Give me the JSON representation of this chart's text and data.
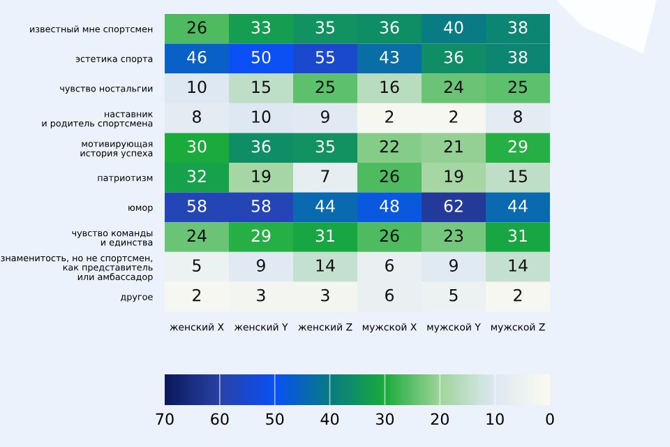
{
  "chart_data": {
    "type": "heatmap",
    "categories": [
      "женский X",
      "женский Y",
      "женский Z",
      "мужской X",
      "мужской Y",
      "мужской Z"
    ],
    "y_categories": [
      "известный мне спортсмен",
      "эстетика спорта",
      "чувство ностальгии",
      "наставник\nи родитель спортсмена",
      "мотивирующая\nистория успеха",
      "патриотизм",
      "юмор",
      "чувство команды\nи единства",
      "знаменитость, но не спортсмен,\nкак представитель\nили амбассадор",
      "другое"
    ],
    "cells": [
      [
        26,
        33,
        35,
        36,
        40,
        38
      ],
      [
        46,
        50,
        55,
        43,
        36,
        38
      ],
      [
        10,
        15,
        25,
        16,
        24,
        25
      ],
      [
        8,
        10,
        9,
        2,
        2,
        8
      ],
      [
        30,
        36,
        35,
        22,
        21,
        29
      ],
      [
        32,
        19,
        7,
        26,
        19,
        15
      ],
      [
        58,
        58,
        44,
        48,
        62,
        44
      ],
      [
        24,
        29,
        31,
        26,
        23,
        31
      ],
      [
        5,
        9,
        14,
        6,
        9,
        14
      ],
      [
        2,
        3,
        3,
        6,
        5,
        2
      ]
    ],
    "clim": [
      70,
      0
    ],
    "cticks": [
      70,
      60,
      50,
      40,
      30,
      20,
      10,
      0
    ],
    "data_labels": true
  }
}
